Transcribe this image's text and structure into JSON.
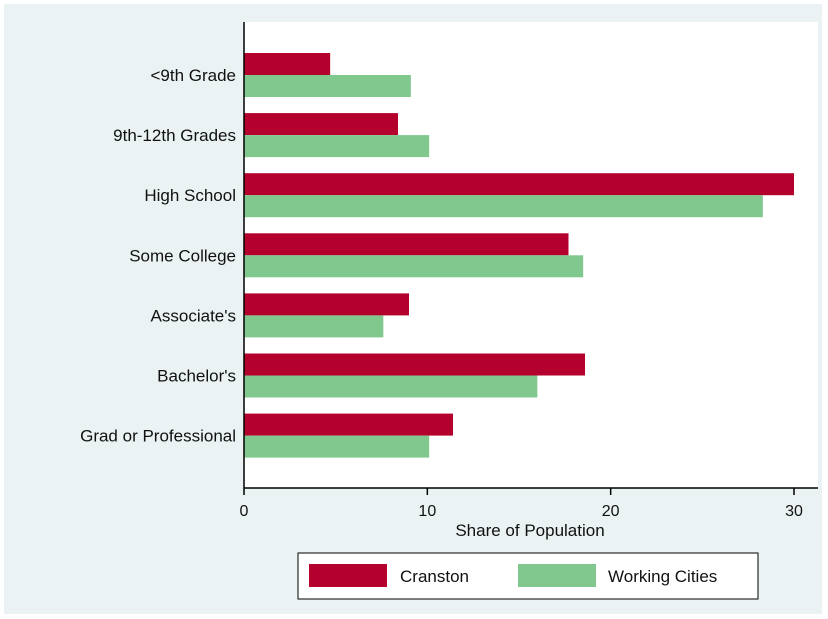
{
  "chart_data": {
    "type": "bar",
    "orientation": "horizontal",
    "categories": [
      "<9th Grade",
      "9th-12th Grades",
      "High School",
      "Some College",
      "Associate's",
      "Bachelor's",
      "Grad or Professional"
    ],
    "series": [
      {
        "name": "Cranston",
        "color": "#b3002d",
        "values": [
          4.7,
          8.4,
          30.0,
          17.7,
          9.0,
          18.6,
          11.4
        ]
      },
      {
        "name": "Working Cities",
        "color": "#80c88d",
        "values": [
          9.1,
          10.1,
          28.3,
          18.5,
          7.6,
          16.0,
          10.1
        ]
      }
    ],
    "xlabel": "Share of Population",
    "ylabel": "",
    "title": "",
    "xlim": [
      0,
      30
    ],
    "xticks": [
      0,
      10,
      20,
      30
    ],
    "grid": false,
    "legend_position": "bottom"
  }
}
